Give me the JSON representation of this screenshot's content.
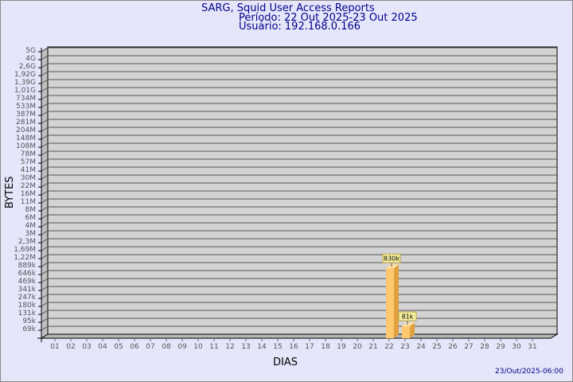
{
  "chart_data": {
    "type": "bar",
    "title": "SARG, Squid User Access Reports",
    "subtitle": [
      "Período: 22 Out 2025-23 Out 2025",
      "Usuário: 192.168.0.166"
    ],
    "xlabel": "DIAS",
    "ylabel": "BYTES",
    "y_scale": "log",
    "grid": true,
    "y_ticks": [
      "5G",
      "4G",
      "2,6G",
      "1,92G",
      "1,39G",
      "1,01G",
      "734M",
      "533M",
      "387M",
      "281M",
      "204M",
      "148M",
      "108M",
      "78M",
      "57M",
      "41M",
      "30M",
      "22M",
      "16M",
      "11M",
      "8M",
      "6M",
      "4M",
      "3M",
      "2,3M",
      "1,69M",
      "1,22M",
      "889k",
      "646k",
      "469k",
      "341k",
      "247k",
      "180k",
      "131k",
      "95k",
      "69k"
    ],
    "categories": [
      "01",
      "02",
      "03",
      "04",
      "05",
      "06",
      "07",
      "08",
      "09",
      "10",
      "11",
      "12",
      "13",
      "14",
      "15",
      "16",
      "17",
      "18",
      "19",
      "20",
      "21",
      "22",
      "23",
      "24",
      "25",
      "26",
      "27",
      "28",
      "29",
      "30",
      "31"
    ],
    "bars": [
      {
        "category": "22",
        "value": 830000,
        "label": "830k"
      },
      {
        "category": "23",
        "value": 81000,
        "label": "81k"
      }
    ],
    "colors": {
      "background": "#e6e6fa",
      "plot": "#d3d3d3",
      "bar": "#ffc86e",
      "title": "#00008b"
    },
    "footer": "23/Out/2025-06:00"
  }
}
